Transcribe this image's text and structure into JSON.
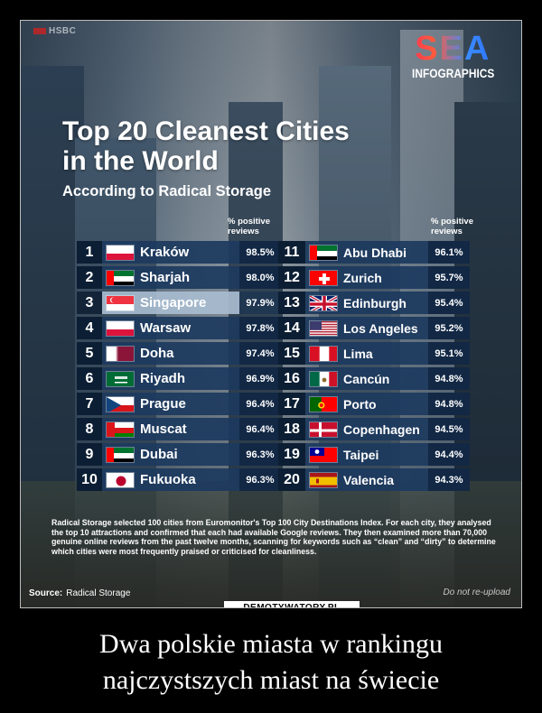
{
  "header": {
    "watermark": "HSBC",
    "logo_main": "SEA",
    "logo_sub": "INFOGRAPHICS",
    "title_line1": "Top 20 Cleanest Cities",
    "title_line2": "in the World",
    "subtitle": "According to Radical Storage",
    "col_head_line1": "% positive",
    "col_head_line2": "reviews"
  },
  "cities": [
    {
      "rank": "1",
      "name": "Kraków",
      "pct": "98.5%",
      "flag": "poland"
    },
    {
      "rank": "2",
      "name": "Sharjah",
      "pct": "98.0%",
      "flag": "uae"
    },
    {
      "rank": "3",
      "name": "Singapore",
      "pct": "97.9%",
      "flag": "singapore"
    },
    {
      "rank": "4",
      "name": "Warsaw",
      "pct": "97.8%",
      "flag": "poland"
    },
    {
      "rank": "5",
      "name": "Doha",
      "pct": "97.4%",
      "flag": "qatar"
    },
    {
      "rank": "6",
      "name": "Riyadh",
      "pct": "96.9%",
      "flag": "saudi"
    },
    {
      "rank": "7",
      "name": "Prague",
      "pct": "96.4%",
      "flag": "czech"
    },
    {
      "rank": "8",
      "name": "Muscat",
      "pct": "96.4%",
      "flag": "oman"
    },
    {
      "rank": "9",
      "name": "Dubai",
      "pct": "96.3%",
      "flag": "uae"
    },
    {
      "rank": "10",
      "name": "Fukuoka",
      "pct": "96.3%",
      "flag": "japan"
    },
    {
      "rank": "11",
      "name": "Abu Dhabi",
      "pct": "96.1%",
      "flag": "uae"
    },
    {
      "rank": "12",
      "name": "Zurich",
      "pct": "95.7%",
      "flag": "swiss"
    },
    {
      "rank": "13",
      "name": "Edinburgh",
      "pct": "95.4%",
      "flag": "uk"
    },
    {
      "rank": "14",
      "name": "Los Angeles",
      "pct": "95.2%",
      "flag": "usa"
    },
    {
      "rank": "15",
      "name": "Lima",
      "pct": "95.1%",
      "flag": "peru"
    },
    {
      "rank": "16",
      "name": "Cancún",
      "pct": "94.8%",
      "flag": "mexico"
    },
    {
      "rank": "17",
      "name": "Porto",
      "pct": "94.8%",
      "flag": "portugal"
    },
    {
      "rank": "18",
      "name": "Copenhagen",
      "pct": "94.5%",
      "flag": "denmark"
    },
    {
      "rank": "19",
      "name": "Taipei",
      "pct": "94.4%",
      "flag": "taiwan"
    },
    {
      "rank": "20",
      "name": "Valencia",
      "pct": "94.3%",
      "flag": "spain"
    }
  ],
  "description": "Radical Storage selected 100 cities from Euromonitor's Top 100 City Destinations Index. For each city, they analysed the top 10 attractions and confirmed that each had available Google reviews. They then examined more than 70,000 genuine online reviews from the past twelve months, scanning for keywords such as “clean” and “dirty” to determine which cities were most frequently praised or criticised for cleanliness.",
  "footer": {
    "source_label": "Source:",
    "source_value": "Radical Storage",
    "no_reupload": "Do not re-upload",
    "site_badge": "DEMOTYWATORY.PL"
  },
  "caption": {
    "line1": "Dwa polskie miasta w rankingu",
    "line2": "najczystszych miast na świecie"
  },
  "colors": {
    "row_bg": "#1c3a5e",
    "highlight_row": "#aabed2",
    "page_bg": "#000000"
  }
}
